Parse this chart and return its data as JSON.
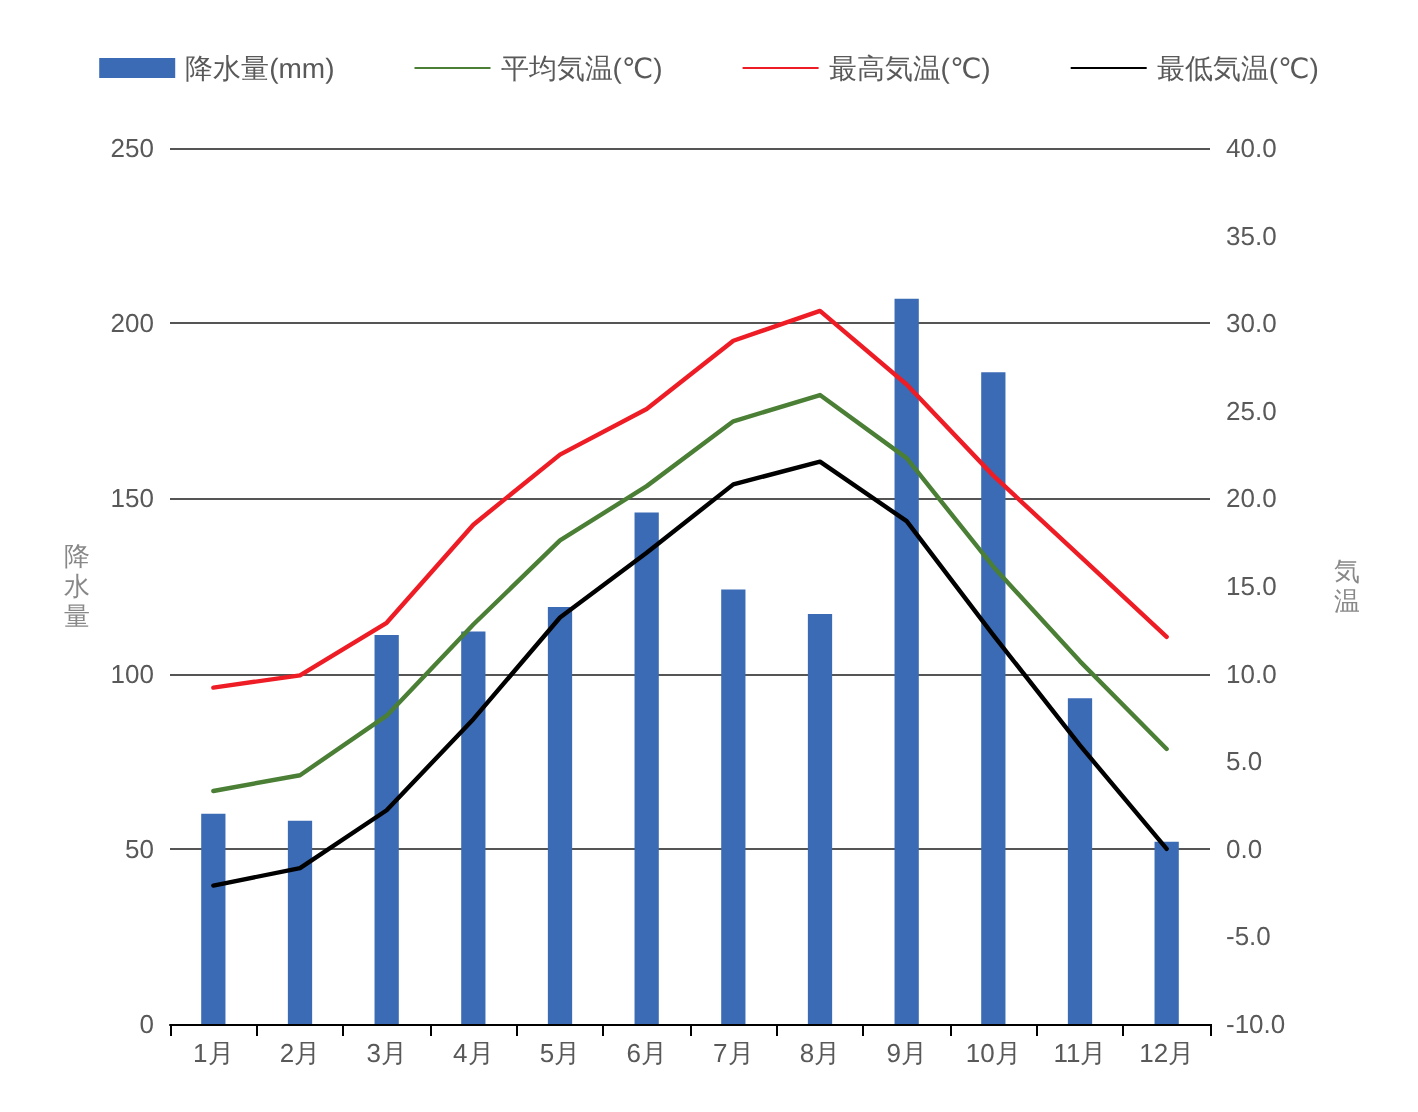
{
  "chart_data": {
    "type": "bar",
    "categories": [
      "1月",
      "2月",
      "3月",
      "4月",
      "5月",
      "6月",
      "7月",
      "8月",
      "9月",
      "10月",
      "11月",
      "12月"
    ],
    "series": [
      {
        "name": "降水量(mm)",
        "color": "#3b6bb5",
        "values": [
          60,
          58,
          111,
          112,
          119,
          146,
          124,
          117,
          207,
          186,
          93,
          52
        ]
      },
      {
        "name": "平均気温(℃)",
        "type": "line",
        "axis": "y2",
        "color": "#4a7f35",
        "values": [
          3.3,
          4.2,
          7.6,
          12.8,
          17.6,
          20.7,
          24.4,
          25.9,
          22.3,
          16.1,
          10.7,
          5.7
        ]
      },
      {
        "name": "最高気温(℃)",
        "type": "line",
        "axis": "y2",
        "color": "#ee1c25",
        "values": [
          9.2,
          9.9,
          12.9,
          18.5,
          22.5,
          25.1,
          29.0,
          30.7,
          26.5,
          21.3,
          16.7,
          12.1
        ]
      },
      {
        "name": "最低気温(℃)",
        "type": "line",
        "axis": "y2",
        "color": "#000000",
        "values": [
          -2.1,
          -1.1,
          2.2,
          7.4,
          13.2,
          16.9,
          20.8,
          22.1,
          18.7,
          12.2,
          5.9,
          0.0
        ]
      }
    ],
    "ylabel": "降水量",
    "y2label": "気温",
    "ylim": [
      0,
      250
    ],
    "yticks": [
      0,
      50,
      100,
      150,
      200,
      250
    ],
    "y2lim": [
      -10,
      40
    ],
    "y2ticks": [
      {
        "value": -10,
        "label": "-10.0"
      },
      {
        "value": -5,
        "label": "-5.0"
      },
      {
        "value": 0,
        "label": "0.0"
      },
      {
        "value": 5,
        "label": "5.0"
      },
      {
        "value": 10,
        "label": "10.0"
      },
      {
        "value": 15,
        "label": "15.0"
      },
      {
        "value": 20,
        "label": "20.0"
      },
      {
        "value": 25,
        "label": "25.0"
      },
      {
        "value": 30,
        "label": "30.0"
      },
      {
        "value": 35,
        "label": "35.0"
      },
      {
        "value": 40,
        "label": "40.0"
      }
    ],
    "grid": "y",
    "legend": "top",
    "marker": "none",
    "line_style": "solid"
  }
}
